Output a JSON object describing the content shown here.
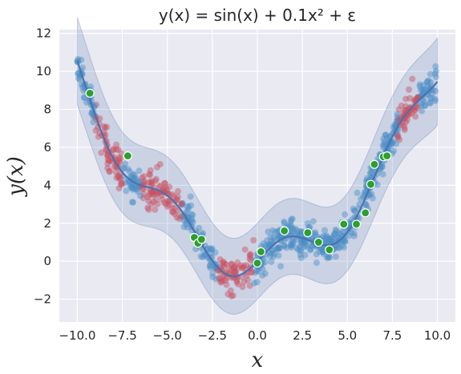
{
  "chart_data": {
    "type": "scatter",
    "title": "y(x) = sin(x) + 0.1x² + ε",
    "xlabel": "x",
    "ylabel": "y(x)",
    "xlim": [
      -11.0,
      11.0
    ],
    "ylim": [
      -3.2,
      12.2
    ],
    "xticks": [
      -10.0,
      -7.5,
      -5.0,
      -2.5,
      0.0,
      2.5,
      5.0,
      7.5,
      10.0
    ],
    "xtick_labels": [
      "−10.0",
      "−7.5",
      "−5.0",
      "−2.5",
      "0.0",
      "2.5",
      "5.0",
      "7.5",
      "10.0"
    ],
    "yticks": [
      -2,
      0,
      2,
      4,
      6,
      8,
      10,
      12
    ],
    "ytick_labels": [
      "−2",
      "0",
      "2",
      "4",
      "6",
      "8",
      "10",
      "12"
    ],
    "grid": true,
    "legend": "none",
    "colors": {
      "background": "#eaeaf2",
      "blue_points": "#4c8fc6",
      "red_points": "#c8505f",
      "green_points": "#2ca02c",
      "mean_line": "#4a72b0",
      "band": "#4c72b0"
    },
    "band_width": 2.0,
    "scatter_noise_std": 0.45,
    "highlighted_points": [
      {
        "x": -9.3,
        "y": 8.85
      },
      {
        "x": -7.2,
        "y": 5.55
      },
      {
        "x": -3.5,
        "y": 1.25
      },
      {
        "x": -3.3,
        "y": 0.95
      },
      {
        "x": -3.1,
        "y": 1.15
      },
      {
        "x": 0.0,
        "y": -0.1
      },
      {
        "x": 0.2,
        "y": 0.5
      },
      {
        "x": 1.5,
        "y": 1.6
      },
      {
        "x": 2.8,
        "y": 1.5
      },
      {
        "x": 3.4,
        "y": 1.0
      },
      {
        "x": 4.0,
        "y": 0.6
      },
      {
        "x": 4.8,
        "y": 1.95
      },
      {
        "x": 5.5,
        "y": 1.95
      },
      {
        "x": 6.0,
        "y": 2.55
      },
      {
        "x": 6.3,
        "y": 4.05
      },
      {
        "x": 6.5,
        "y": 5.1
      },
      {
        "x": 7.0,
        "y": 5.5
      },
      {
        "x": 7.2,
        "y": 5.55
      }
    ]
  }
}
